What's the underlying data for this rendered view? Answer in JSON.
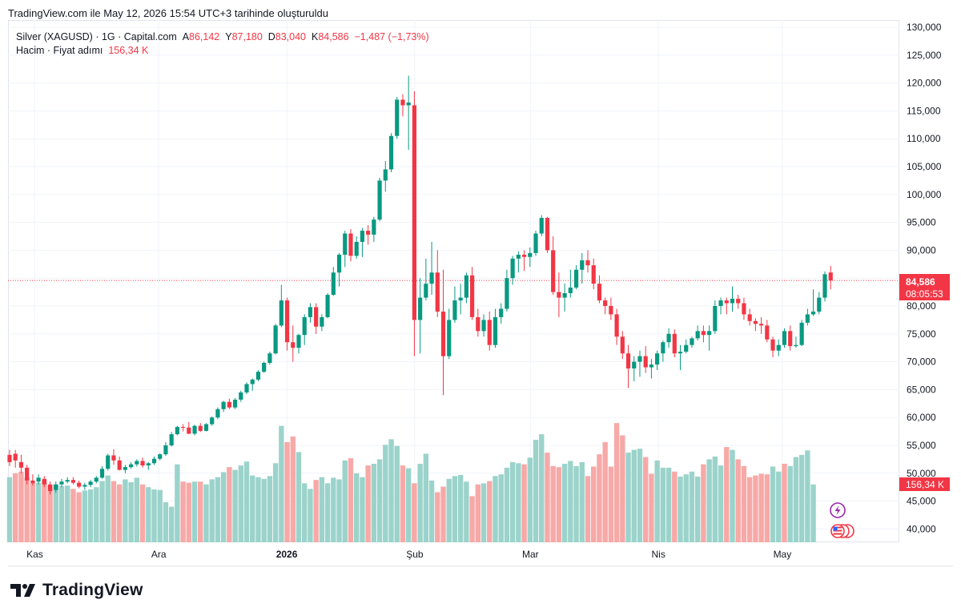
{
  "caption": "TradingView.com ile May 12, 2026 15:54 UTC+3 tarihinde oluşturuldu",
  "legend": {
    "symbol": "Silver (XAGUSD) · 1G · Capital.com",
    "open_label": "A",
    "open": "86,142",
    "high_label": "Y",
    "high": "87,180",
    "low_label": "D",
    "low": "83,040",
    "close_label": "K",
    "close": "84,586",
    "change": "−1,487 (−1,73%)",
    "volume_label": "Hacim · Fiyat adımı",
    "volume": "156,34 K"
  },
  "price_tag": {
    "price": "84,586",
    "countdown": "08:05:53",
    "color": "#f23645"
  },
  "volume_tag": {
    "value": "156,34 K",
    "color": "#f23645"
  },
  "brand": "TradingView",
  "colors": {
    "up": "#089981",
    "down": "#f23645",
    "vol_up": "#9bd3cb",
    "vol_down": "#f7a9a7",
    "grid": "#f0f3fa"
  },
  "icons": [
    "lightning-icon",
    "us-flag-icon"
  ],
  "chart_data": {
    "type": "candlestick",
    "title": "Silver (XAGUSD) · 1G · Capital.com",
    "ylim": [
      38000,
      131000
    ],
    "yticks": [
      "130,000",
      "125,000",
      "120,000",
      "115,000",
      "110,000",
      "105,000",
      "100,000",
      "95,000",
      "90,000",
      "85,000",
      "80,000",
      "75,000",
      "70,000",
      "65,000",
      "60,000",
      "55,000",
      "50,000",
      "45,000",
      "40,000"
    ],
    "xticks": [
      {
        "label": "Kas",
        "date": "2025-11-01",
        "bold": false
      },
      {
        "label": "Ara",
        "date": "2025-12-01",
        "bold": false
      },
      {
        "label": "2026",
        "date": "2026-01-01",
        "bold": true
      },
      {
        "label": "Şub",
        "date": "2026-02-01",
        "bold": false
      },
      {
        "label": "Mar",
        "date": "2026-03-01",
        "bold": false
      },
      {
        "label": "Nis",
        "date": "2026-04-01",
        "bold": false
      },
      {
        "label": "May",
        "date": "2026-05-01",
        "bold": false
      }
    ],
    "ohlc_points": [
      [
        53300,
        54200,
        51300,
        52000
      ],
      [
        53500,
        54200,
        51000,
        52300
      ],
      [
        52000,
        53300,
        50000,
        51000
      ],
      [
        51000,
        51500,
        48000,
        48700
      ],
      [
        48700,
        49800,
        47800,
        48200
      ],
      [
        48500,
        49800,
        48000,
        49200
      ],
      [
        49000,
        49500,
        47500,
        48000
      ],
      [
        48000,
        48500,
        46200,
        46800
      ],
      [
        47000,
        48500,
        46500,
        48000
      ],
      [
        48000,
        49000,
        47500,
        48500
      ],
      [
        48500,
        49300,
        48200,
        48800
      ],
      [
        48800,
        49300,
        48000,
        48300
      ],
      [
        48300,
        48700,
        47300,
        47600
      ],
      [
        47600,
        48300,
        47000,
        47900
      ],
      [
        47900,
        48800,
        47500,
        48500
      ],
      [
        48500,
        49500,
        48200,
        49200
      ],
      [
        49200,
        51300,
        49000,
        50800
      ],
      [
        50800,
        53500,
        50500,
        53200
      ],
      [
        53200,
        54300,
        51500,
        52300
      ],
      [
        52300,
        53000,
        50500,
        50600
      ],
      [
        50600,
        51500,
        50000,
        51100
      ],
      [
        51100,
        52000,
        50800,
        51600
      ],
      [
        51600,
        52500,
        51200,
        52200
      ],
      [
        52200,
        52800,
        51000,
        51400
      ],
      [
        51400,
        52000,
        50600,
        51800
      ],
      [
        51800,
        53000,
        51500,
        52600
      ],
      [
        52600,
        53600,
        52300,
        53400
      ],
      [
        53400,
        55600,
        53100,
        55000
      ],
      [
        55000,
        57400,
        54800,
        57000
      ],
      [
        57000,
        58500,
        56800,
        58300
      ],
      [
        58300,
        58800,
        57500,
        58200
      ],
      [
        58200,
        59200,
        57000,
        57100
      ],
      [
        57100,
        58700,
        56800,
        58500
      ],
      [
        58500,
        59000,
        57400,
        57600
      ],
      [
        57600,
        59000,
        57500,
        58800
      ],
      [
        58800,
        60200,
        58500,
        60000
      ],
      [
        60000,
        61800,
        59700,
        61500
      ],
      [
        61500,
        63000,
        61000,
        62800
      ],
      [
        62800,
        63400,
        61500,
        61800
      ],
      [
        61800,
        63500,
        61500,
        63200
      ],
      [
        63200,
        64800,
        62800,
        64500
      ],
      [
        64500,
        66300,
        64200,
        66000
      ],
      [
        66000,
        67000,
        64800,
        66800
      ],
      [
        66800,
        68500,
        66500,
        68200
      ],
      [
        68200,
        70000,
        68000,
        69800
      ],
      [
        69800,
        71800,
        69500,
        71500
      ],
      [
        71500,
        76800,
        71300,
        76500
      ],
      [
        76500,
        83800,
        76200,
        81000
      ],
      [
        81000,
        81500,
        72000,
        73500
      ],
      [
        73500,
        76500,
        70000,
        72500
      ],
      [
        72500,
        75000,
        71500,
        74800
      ],
      [
        74800,
        78500,
        73000,
        78000
      ],
      [
        78000,
        80500,
        77000,
        79800
      ],
      [
        79800,
        80500,
        75000,
        76300
      ],
      [
        76300,
        78500,
        75500,
        78000
      ],
      [
        78000,
        82300,
        77800,
        82000
      ],
      [
        82000,
        87000,
        81800,
        86000
      ],
      [
        86000,
        89500,
        83500,
        89200
      ],
      [
        89200,
        93500,
        87000,
        93000
      ],
      [
        93000,
        93800,
        88000,
        89000
      ],
      [
        89000,
        92500,
        88500,
        91500
      ],
      [
        91500,
        94000,
        88800,
        93500
      ],
      [
        93500,
        94500,
        91000,
        92800
      ],
      [
        92800,
        96000,
        91500,
        95500
      ],
      [
        95500,
        103000,
        95200,
        102500
      ],
      [
        102500,
        106000,
        100500,
        104500
      ],
      [
        104500,
        111000,
        104000,
        110500
      ],
      [
        110500,
        117500,
        110000,
        117000
      ],
      [
        117000,
        118000,
        114000,
        116000
      ],
      [
        116000,
        121300,
        108000,
        116500
      ],
      [
        116000,
        118500,
        71000,
        77500
      ],
      [
        77500,
        85000,
        71500,
        81500
      ],
      [
        81500,
        88500,
        81000,
        84000
      ],
      [
        84000,
        91500,
        82000,
        86000
      ],
      [
        86000,
        90000,
        78000,
        79000
      ],
      [
        79000,
        86500,
        64000,
        71000
      ],
      [
        71000,
        79500,
        70500,
        77500
      ],
      [
        77500,
        83500,
        77000,
        81000
      ],
      [
        81000,
        84000,
        78500,
        81500
      ],
      [
        81500,
        86000,
        80500,
        85500
      ],
      [
        85500,
        87000,
        77500,
        78000
      ],
      [
        78000,
        79500,
        74500,
        75500
      ],
      [
        75500,
        78500,
        74500,
        77500
      ],
      [
        77500,
        79000,
        72000,
        73000
      ],
      [
        73000,
        79500,
        72500,
        78000
      ],
      [
        78000,
        80500,
        76800,
        79500
      ],
      [
        79500,
        86500,
        79000,
        85000
      ],
      [
        85000,
        89000,
        83800,
        88500
      ],
      [
        88500,
        89800,
        86000,
        89200
      ],
      [
        89200,
        90000,
        86300,
        88800
      ],
      [
        88800,
        90500,
        87000,
        89500
      ],
      [
        89500,
        93500,
        89000,
        93000
      ],
      [
        93000,
        96300,
        92500,
        95800
      ],
      [
        95800,
        96000,
        89500,
        90000
      ],
      [
        90000,
        92500,
        82000,
        82500
      ],
      [
        82500,
        86000,
        78000,
        81500
      ],
      [
        81500,
        84000,
        79000,
        82300
      ],
      [
        82300,
        86500,
        81500,
        83300
      ],
      [
        83300,
        87300,
        83000,
        86500
      ],
      [
        86500,
        89500,
        84000,
        88200
      ],
      [
        88200,
        90000,
        86000,
        87300
      ],
      [
        87300,
        88500,
        83000,
        84000
      ],
      [
        84000,
        85500,
        80500,
        81000
      ],
      [
        81000,
        81500,
        78500,
        80000
      ],
      [
        80000,
        81500,
        77500,
        78500
      ],
      [
        78500,
        79500,
        73000,
        74500
      ],
      [
        74500,
        75500,
        70500,
        71500
      ],
      [
        71500,
        73000,
        65300,
        68800
      ],
      [
        68800,
        71000,
        66500,
        70000
      ],
      [
        70000,
        72000,
        67300,
        71000
      ],
      [
        71000,
        72800,
        68000,
        69000
      ],
      [
        69000,
        70500,
        67000,
        69500
      ],
      [
        69500,
        72000,
        68500,
        71500
      ],
      [
        71500,
        73800,
        70000,
        73500
      ],
      [
        73500,
        76000,
        72500,
        75000
      ],
      [
        75000,
        75800,
        70800,
        71500
      ],
      [
        71500,
        73000,
        68500,
        71800
      ],
      [
        71800,
        74000,
        71500,
        73000
      ],
      [
        73000,
        74500,
        72500,
        74200
      ],
      [
        74200,
        76500,
        73800,
        75500
      ],
      [
        75500,
        76500,
        73500,
        74800
      ],
      [
        74800,
        76500,
        72000,
        75500
      ],
      [
        75500,
        81000,
        75000,
        80000
      ],
      [
        80000,
        81500,
        78500,
        81000
      ],
      [
        81000,
        81500,
        78500,
        80500
      ],
      [
        80500,
        83500,
        79000,
        81300
      ],
      [
        81300,
        82000,
        79500,
        80500
      ],
      [
        80500,
        81500,
        77500,
        78500
      ],
      [
        78500,
        79500,
        76500,
        77300
      ],
      [
        77300,
        77800,
        75500,
        76800
      ],
      [
        76800,
        78000,
        75000,
        76500
      ],
      [
        76500,
        77500,
        73500,
        74000
      ],
      [
        74000,
        74500,
        70800,
        72000
      ],
      [
        72000,
        74000,
        71000,
        73000
      ],
      [
        73000,
        76000,
        72500,
        75500
      ],
      [
        75500,
        76500,
        72000,
        72800
      ],
      [
        72800,
        74500,
        72500,
        73000
      ],
      [
        73000,
        77500,
        72800,
        77000
      ],
      [
        77000,
        79500,
        76500,
        78500
      ],
      [
        78500,
        83000,
        78200,
        79000
      ],
      [
        79000,
        82500,
        78500,
        81500
      ],
      [
        81500,
        86200,
        80800,
        85700
      ],
      [
        86000,
        87200,
        83000,
        84586
      ]
    ],
    "volume_up_flags": [
      1,
      0,
      0,
      0,
      0,
      1,
      0,
      0,
      1,
      1,
      1,
      0,
      0,
      1,
      1,
      1,
      1,
      1,
      0,
      0,
      1,
      1,
      1,
      0,
      1,
      1,
      1,
      1,
      1,
      1,
      0,
      0,
      1,
      0,
      1,
      1,
      1,
      1,
      0,
      1,
      1,
      1,
      1,
      1,
      1,
      1,
      1,
      1,
      0,
      0,
      1,
      1,
      1,
      0,
      1,
      1,
      1,
      1,
      1,
      0,
      1,
      1,
      0,
      1,
      1,
      1,
      1,
      1,
      0,
      1,
      0,
      1,
      1,
      1,
      0,
      0,
      1,
      1,
      1,
      1,
      0,
      0,
      1,
      0,
      1,
      1,
      1,
      1,
      1,
      0,
      1,
      1,
      1,
      0,
      0,
      0,
      1,
      1,
      1,
      1,
      0,
      0,
      0,
      0,
      0,
      0,
      0,
      1,
      1,
      1,
      0,
      0,
      1,
      1,
      1,
      0,
      1,
      1,
      1,
      1,
      0,
      1,
      1,
      1,
      0,
      1,
      0,
      0,
      0,
      0,
      0,
      0,
      1,
      1,
      0,
      1,
      1,
      1,
      1,
      1,
      1,
      0
    ],
    "volume_levels": [
      49300,
      50000,
      50300,
      49200,
      48200,
      48300,
      48800,
      47800,
      48000,
      47700,
      47800,
      47200,
      46600,
      46900,
      47100,
      47500,
      48600,
      49600,
      48600,
      48000,
      48900,
      48400,
      49200,
      48000,
      47500,
      47100,
      47000,
      44800,
      44000,
      51600,
      48500,
      48300,
      48500,
      48500,
      48000,
      48900,
      49300,
      50200,
      51100,
      50600,
      51400,
      52100,
      49600,
      49300,
      49000,
      49500,
      51800,
      58500,
      55600,
      56600,
      53800,
      48200,
      47200,
      48800,
      49300,
      48200,
      49200,
      48900,
      52300,
      52700,
      50000,
      49300,
      51400,
      51700,
      52500,
      55100,
      56100,
      54900,
      51400,
      50900,
      48200,
      51700,
      53500,
      48700,
      46600,
      47600,
      49000,
      49500,
      49700,
      48500,
      45900,
      48000,
      48200,
      48600,
      49500,
      49800,
      51000,
      52000,
      51800,
      51600,
      52800,
      56000,
      57000,
      53700,
      51300,
      51100,
      51700,
      52200,
      51300,
      52000,
      49500,
      51200,
      53400,
      55600,
      51200,
      59000,
      56800,
      53700,
      54200,
      54400,
      52900,
      49900,
      52300,
      51000,
      51000,
      50300,
      49400,
      49800,
      50300,
      49400,
      51600,
      52500,
      53000,
      51400,
      54700,
      54200,
      52500,
      51300,
      49300,
      49600,
      49900,
      49800,
      51200,
      50300,
      51700,
      51300,
      52900,
      53300,
      54100,
      48000
    ]
  }
}
